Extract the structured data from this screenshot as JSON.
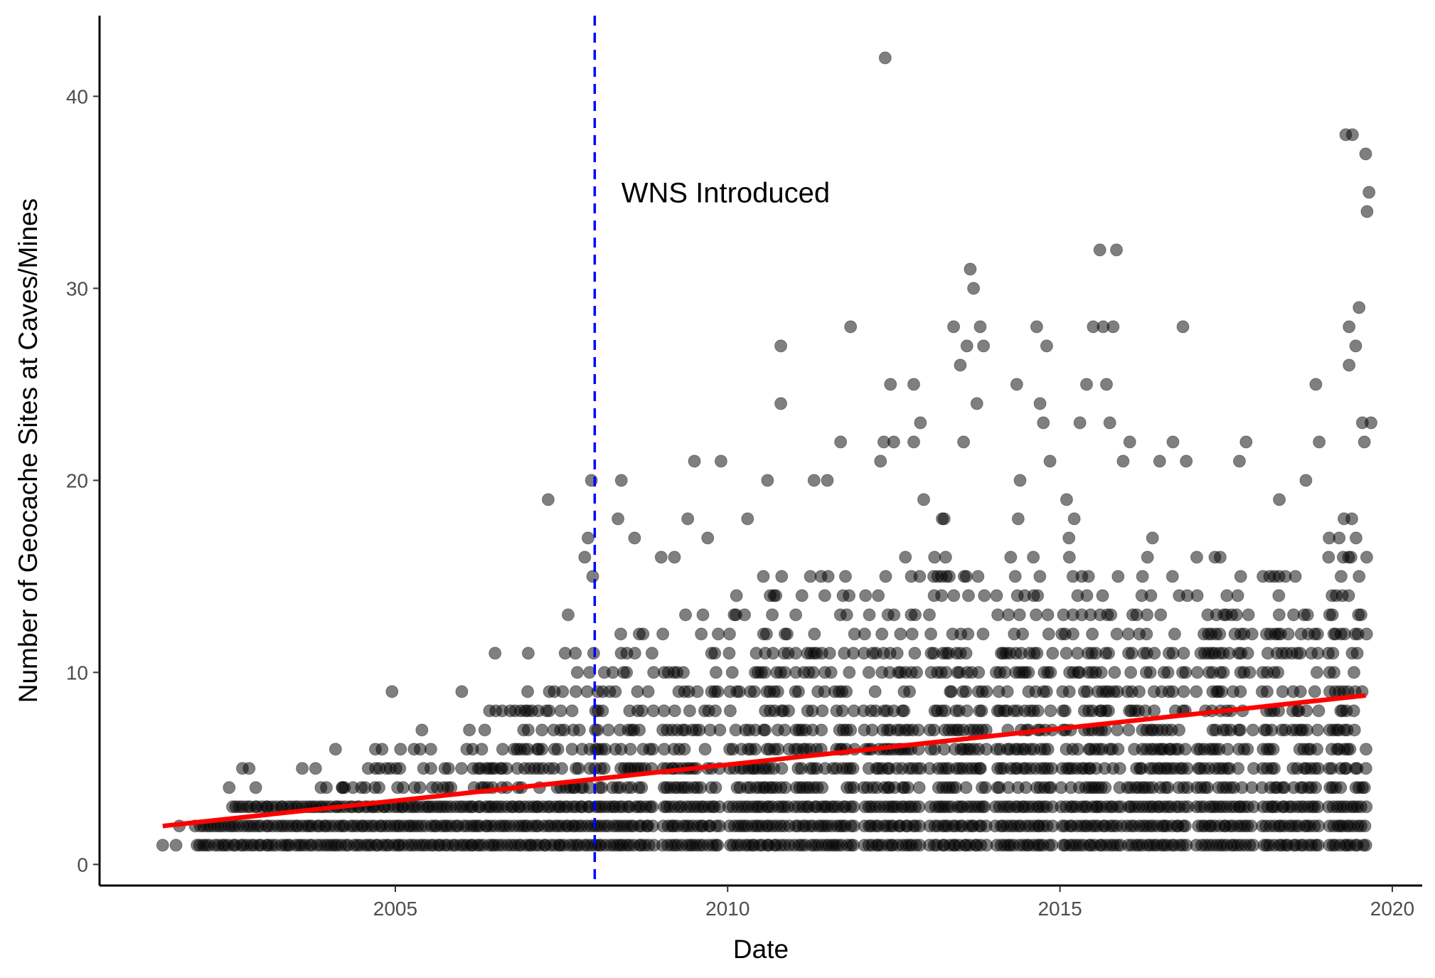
{
  "chart_data": {
    "type": "scatter",
    "xlabel": "Date",
    "ylabel": "Number of Geocache Sites at Caves/Mines",
    "xlim": [
      2000.55,
      2020.45
    ],
    "ylim": [
      -1.1,
      44.2
    ],
    "x_ticks": [
      {
        "value": 2005,
        "label": "2005"
      },
      {
        "value": 2010,
        "label": "2010"
      },
      {
        "value": 2015,
        "label": "2015"
      },
      {
        "value": 2020,
        "label": "2020"
      }
    ],
    "y_ticks": [
      {
        "value": 0,
        "label": "0"
      },
      {
        "value": 10,
        "label": "10"
      },
      {
        "value": 20,
        "label": "20"
      },
      {
        "value": 30,
        "label": "30"
      },
      {
        "value": 40,
        "label": "40"
      }
    ],
    "grid": false,
    "legend": "none",
    "point_color": "#000000",
    "point_opacity": 0.5,
    "points": [
      [
        2001.5,
        1
      ],
      [
        2001.7,
        1
      ],
      [
        2001.75,
        2
      ],
      [
        2002.5,
        4
      ],
      [
        2002.7,
        5
      ],
      [
        2002.8,
        5
      ],
      [
        2002.9,
        4
      ],
      [
        2003.6,
        5
      ],
      [
        2003.8,
        5
      ],
      [
        2004.1,
        6
      ],
      [
        2004.2,
        4
      ],
      [
        2004.7,
        6
      ],
      [
        2004.8,
        6
      ],
      [
        2004.95,
        9
      ],
      [
        2005.4,
        7
      ],
      [
        2006.0,
        9
      ],
      [
        2006.5,
        11
      ],
      [
        2007.0,
        11
      ],
      [
        2007.3,
        19
      ],
      [
        2007.6,
        13
      ],
      [
        2007.85,
        16
      ],
      [
        2007.9,
        17
      ],
      [
        2007.95,
        20
      ],
      [
        2007.97,
        15
      ],
      [
        2008.35,
        18
      ],
      [
        2008.4,
        20
      ],
      [
        2008.6,
        17
      ],
      [
        2009.0,
        16
      ],
      [
        2009.2,
        16
      ],
      [
        2009.4,
        18
      ],
      [
        2009.5,
        21
      ],
      [
        2009.9,
        21
      ],
      [
        2009.7,
        17
      ],
      [
        2010.3,
        18
      ],
      [
        2010.6,
        20
      ],
      [
        2010.8,
        27
      ],
      [
        2010.8,
        24
      ],
      [
        2011.3,
        20
      ],
      [
        2011.5,
        20
      ],
      [
        2011.7,
        22
      ],
      [
        2011.85,
        28
      ],
      [
        2012.3,
        21
      ],
      [
        2012.35,
        22
      ],
      [
        2012.45,
        25
      ],
      [
        2012.5,
        22
      ],
      [
        2012.8,
        25
      ],
      [
        2012.8,
        22
      ],
      [
        2012.9,
        23
      ],
      [
        2012.95,
        19
      ],
      [
        2013.4,
        28
      ],
      [
        2013.5,
        26
      ],
      [
        2013.6,
        27
      ],
      [
        2013.65,
        31
      ],
      [
        2013.7,
        30
      ],
      [
        2013.75,
        24
      ],
      [
        2013.8,
        28
      ],
      [
        2013.85,
        27
      ],
      [
        2014.35,
        25
      ],
      [
        2014.65,
        28
      ],
      [
        2014.7,
        24
      ],
      [
        2014.75,
        23
      ],
      [
        2014.8,
        27
      ],
      [
        2014.85,
        21
      ],
      [
        2015.3,
        23
      ],
      [
        2015.4,
        25
      ],
      [
        2015.5,
        28
      ],
      [
        2015.6,
        32
      ],
      [
        2015.65,
        28
      ],
      [
        2015.7,
        25
      ],
      [
        2015.75,
        23
      ],
      [
        2015.8,
        28
      ],
      [
        2015.85,
        32
      ],
      [
        2015.95,
        21
      ],
      [
        2016.05,
        22
      ],
      [
        2016.5,
        21
      ],
      [
        2016.7,
        22
      ],
      [
        2016.85,
        28
      ],
      [
        2016.9,
        21
      ],
      [
        2017.7,
        21
      ],
      [
        2017.8,
        22
      ],
      [
        2018.3,
        19
      ],
      [
        2018.7,
        20
      ],
      [
        2018.85,
        25
      ],
      [
        2018.9,
        22
      ],
      [
        2019.05,
        17
      ],
      [
        2019.3,
        38
      ],
      [
        2019.35,
        28
      ],
      [
        2019.4,
        38
      ],
      [
        2019.45,
        27
      ],
      [
        2019.5,
        29
      ],
      [
        2019.55,
        23
      ],
      [
        2019.58,
        22
      ],
      [
        2019.6,
        37
      ],
      [
        2019.62,
        34
      ],
      [
        2019.65,
        35
      ],
      [
        2019.68,
        23
      ],
      [
        2012.37,
        42
      ],
      [
        2019.35,
        26
      ],
      [
        2013.55,
        22
      ],
      [
        2014.4,
        20
      ],
      [
        2015.1,
        19
      ]
    ],
    "trend_line": {
      "color": "#ff0000",
      "x": [
        2001.5,
        2019.6
      ],
      "y": [
        2.0,
        8.8
      ]
    },
    "vline": {
      "x": 2008.0,
      "color": "#0000ff",
      "style": "dashed"
    },
    "annotations": [
      {
        "text": "WNS Introduced",
        "x": 2008.4,
        "y": 35
      }
    ]
  }
}
